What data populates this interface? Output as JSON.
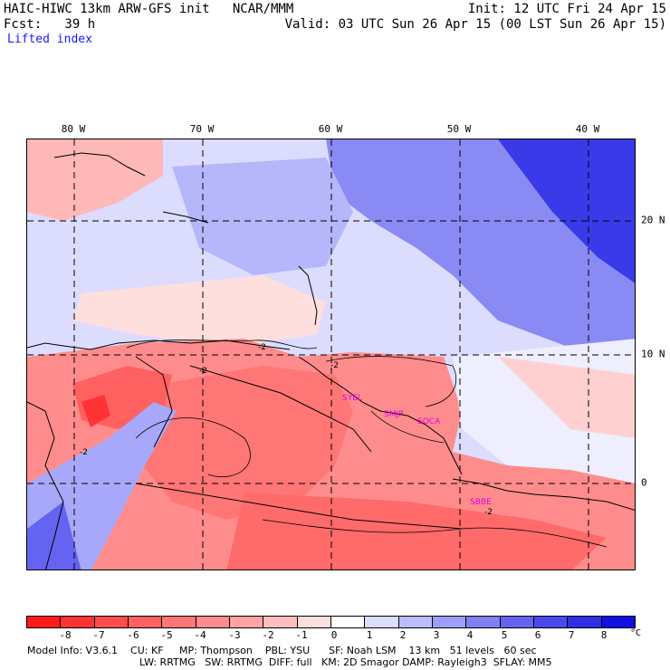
{
  "header": {
    "title_left": "HAIC-HIWC 13km ARW-GFS init   NCAR/MMM",
    "fcst": "Fcst:   39 h",
    "field": "Lifted index",
    "init": "Init: 12 UTC Fri 24 Apr 15",
    "valid": "Valid: 03 UTC Sun 26 Apr 15 (00 LST Sun 26 Apr 15)"
  },
  "map": {
    "lon_labels": [
      "80 W",
      "70 W",
      "60 W",
      "50 W",
      "40 W"
    ],
    "lat_labels": [
      "20 N",
      "10 N",
      "0"
    ],
    "stations": [
      "SYEL",
      "SMJP",
      "SOCA",
      "SBBE"
    ],
    "contour_labels": [
      "-2",
      "-2",
      "-2",
      "-2",
      "-2"
    ]
  },
  "colorbar": {
    "ticks": [
      "-8",
      "-7",
      "-6",
      "-5",
      "-4",
      "-3",
      "-2",
      "-1",
      "0",
      "1",
      "2",
      "3",
      "4",
      "5",
      "6",
      "7",
      "8"
    ],
    "unit": "°C",
    "colors": [
      "#ff1a1a",
      "#ff3333",
      "#ff4d4d",
      "#ff6060",
      "#ff7676",
      "#ff8c8c",
      "#ffa3a3",
      "#ffbebe",
      "#ffdede",
      "#ffffff",
      "#dcdcff",
      "#bcbcff",
      "#9e9efa",
      "#8080f5",
      "#6464f0",
      "#4a4aeb",
      "#2e2ee6",
      "#1010e0"
    ]
  },
  "footer": {
    "line1": "Model Info: V3.6.1    CU: KF     MP: Thompson    PBL: YSU      SF: Noah LSM    13 km   51 levels   60 sec",
    "line2": "LW: RRTMG   SW: RRTMG  DIFF: full   KM: 2D Smagor DAMP: Rayleigh3  SFLAY: MM5"
  }
}
